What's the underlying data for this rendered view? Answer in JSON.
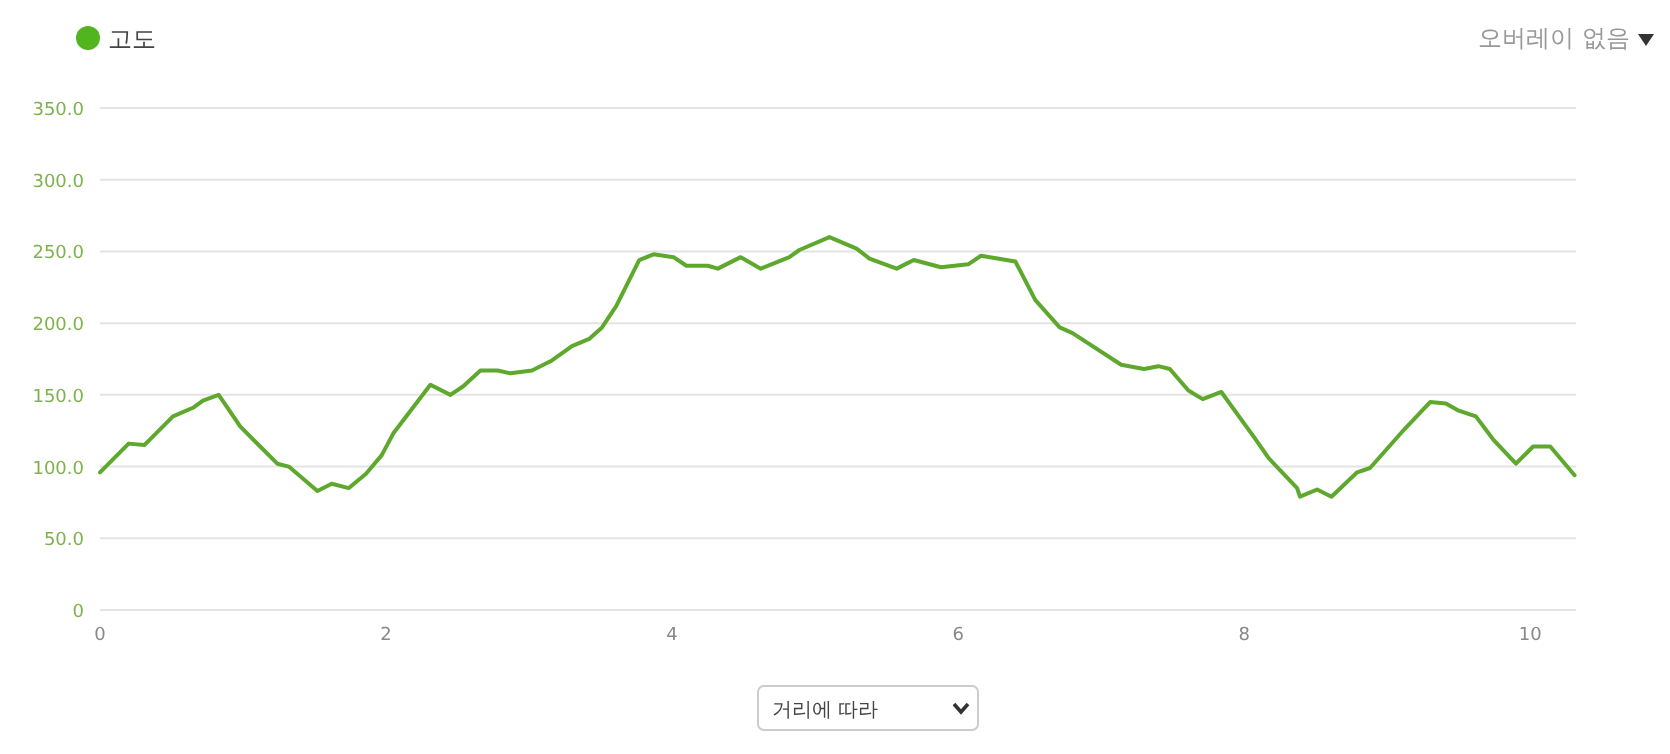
{
  "chart_data": {
    "type": "line",
    "legend": "top left",
    "grid": "y",
    "marker": "none",
    "line_style": "solid",
    "xlim": [
      0,
      10.32
    ],
    "ylim": [
      0,
      350
    ],
    "xticks": [
      0,
      2,
      4,
      6,
      8,
      10
    ],
    "yticks": [
      0,
      {
        "value": 50,
        "label": "50.0"
      },
      {
        "value": 100,
        "label": "100.0"
      },
      {
        "value": 150,
        "label": "150.0"
      },
      {
        "value": 200,
        "label": "200.0"
      },
      {
        "value": 250,
        "label": "250.0"
      },
      {
        "value": 300,
        "label": "300.0"
      },
      {
        "value": 350,
        "label": "350.0"
      }
    ],
    "annotations": [
      "오버레이 없음",
      "거리에 따라"
    ],
    "series": [
      {
        "name": "고도",
        "color": "#5fa82e",
        "x": [
          0,
          0.2,
          0.31,
          0.39,
          0.51,
          0.65,
          0.72,
          0.83,
          0.98,
          1.12,
          1.24,
          1.32,
          1.52,
          1.62,
          1.74,
          1.86,
          1.97,
          2.05,
          2.31,
          2.45,
          2.54,
          2.66,
          2.78,
          2.87,
          3.02,
          3.16,
          3.3,
          3.42,
          3.51,
          3.61,
          3.77,
          3.87,
          4.01,
          4.1,
          4.25,
          4.32,
          4.48,
          4.62,
          4.72,
          4.82,
          4.89,
          5.1,
          5.29,
          5.38,
          5.57,
          5.69,
          5.88,
          6.07,
          6.16,
          6.4,
          6.54,
          6.71,
          6.8,
          7.14,
          7.3,
          7.4,
          7.48,
          7.61,
          7.71,
          7.84,
          8.08,
          8.17,
          8.37,
          8.39,
          8.51,
          8.61,
          8.79,
          8.88,
          9.12,
          9.3,
          9.41,
          9.5,
          9.62,
          9.74,
          9.9,
          10.02,
          10.14,
          10.31
        ],
        "values": [
          96,
          116,
          115,
          123,
          135,
          141,
          146,
          150,
          128,
          114,
          102,
          100,
          83,
          88,
          85,
          95,
          108,
          123,
          157,
          150,
          156,
          167,
          167,
          165,
          167,
          174,
          184,
          189,
          197,
          212,
          244,
          248,
          246,
          240,
          240,
          238,
          246,
          238,
          242,
          246,
          251,
          260,
          252,
          245,
          238,
          244,
          239,
          241,
          247,
          243,
          216,
          197,
          193,
          171,
          168,
          170,
          168,
          153,
          147,
          152,
          119,
          106,
          85,
          79,
          84,
          79,
          96,
          99,
          126,
          145,
          144,
          139,
          135,
          119,
          102,
          114,
          114,
          94
        ]
      }
    ]
  }
}
